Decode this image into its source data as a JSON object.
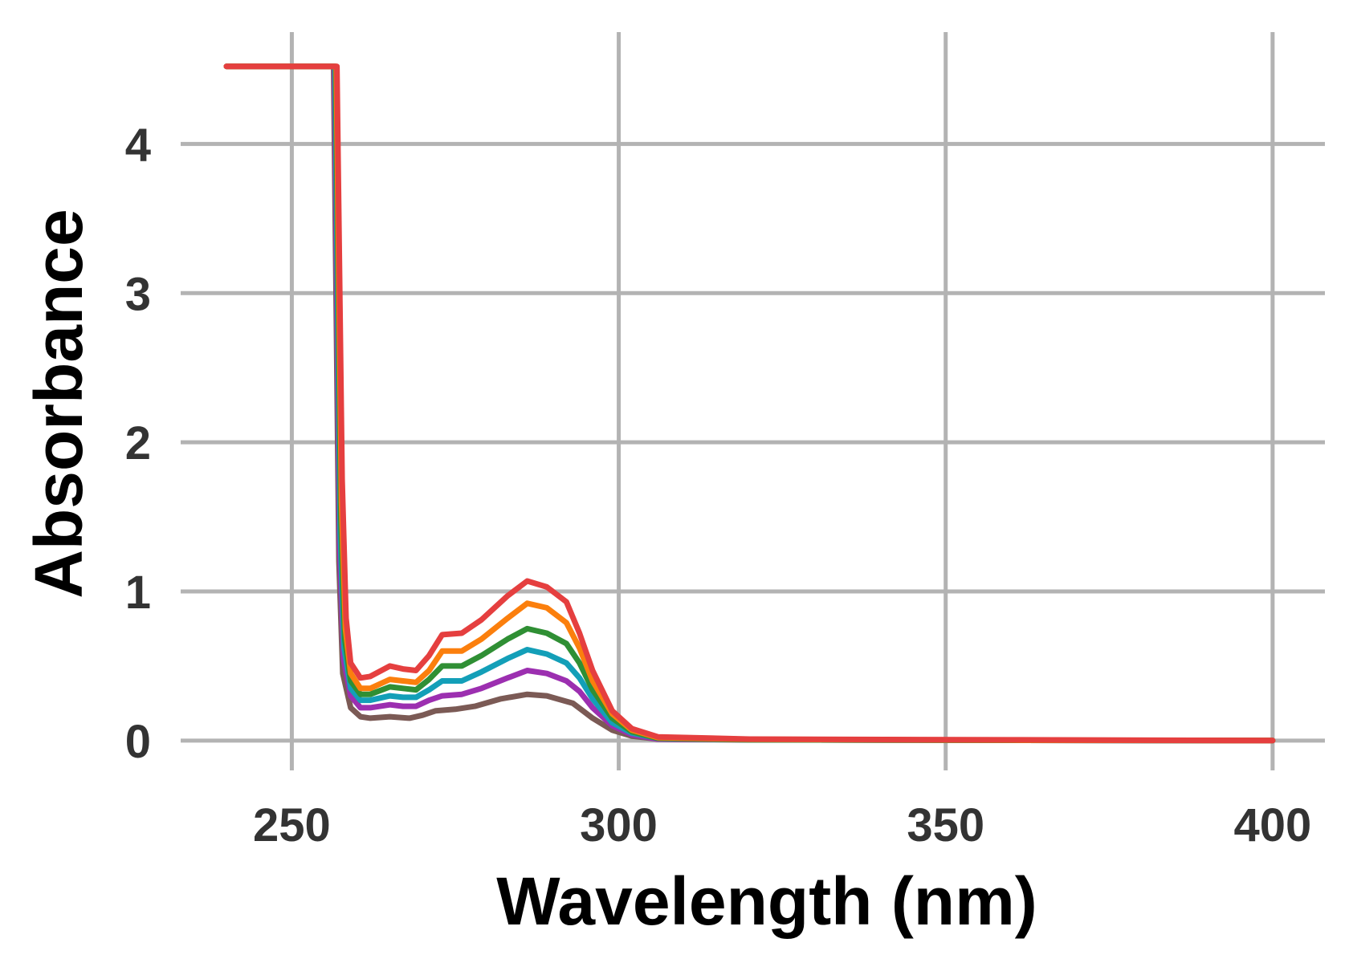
{
  "chart_data": {
    "type": "line",
    "title": "",
    "xlabel": "Wavelength (nm)",
    "ylabel": "Absorbance",
    "xlim": [
      233,
      408
    ],
    "ylim": [
      -0.2,
      4.75
    ],
    "xticks": [
      250,
      300,
      350,
      400
    ],
    "yticks": [
      0,
      1,
      2,
      3,
      4
    ],
    "grid": true,
    "legend": "none",
    "series": [
      {
        "color": "#7b5a55",
        "points": [
          [
            240,
            4.52
          ],
          [
            256.4,
            4.52
          ],
          [
            257.2,
            1.2
          ],
          [
            257.8,
            0.45
          ],
          [
            259,
            0.22
          ],
          [
            260.5,
            0.16
          ],
          [
            262,
            0.15
          ],
          [
            265,
            0.16
          ],
          [
            268,
            0.15
          ],
          [
            270,
            0.17
          ],
          [
            272,
            0.2
          ],
          [
            275,
            0.21
          ],
          [
            278,
            0.23
          ],
          [
            282,
            0.28
          ],
          [
            286,
            0.31
          ],
          [
            289,
            0.3
          ],
          [
            293,
            0.25
          ],
          [
            296,
            0.15
          ],
          [
            299,
            0.07
          ],
          [
            302,
            0.03
          ],
          [
            306,
            0.01
          ],
          [
            320,
            0.005
          ],
          [
            360,
            0.002
          ],
          [
            400,
            0.0
          ]
        ]
      },
      {
        "color": "#9c2fb0",
        "points": [
          [
            240,
            4.52
          ],
          [
            256.5,
            4.52
          ],
          [
            257.3,
            1.3
          ],
          [
            257.9,
            0.55
          ],
          [
            259,
            0.3
          ],
          [
            260.5,
            0.22
          ],
          [
            262,
            0.22
          ],
          [
            265,
            0.24
          ],
          [
            267,
            0.23
          ],
          [
            269,
            0.23
          ],
          [
            271,
            0.27
          ],
          [
            273,
            0.3
          ],
          [
            276,
            0.31
          ],
          [
            279,
            0.35
          ],
          [
            283,
            0.42
          ],
          [
            286,
            0.47
          ],
          [
            289,
            0.45
          ],
          [
            292,
            0.4
          ],
          [
            294,
            0.33
          ],
          [
            296,
            0.22
          ],
          [
            299,
            0.1
          ],
          [
            302,
            0.04
          ],
          [
            306,
            0.01
          ],
          [
            320,
            0.005
          ],
          [
            360,
            0.002
          ],
          [
            400,
            0.0
          ]
        ]
      },
      {
        "color": "#139fb8",
        "points": [
          [
            240,
            4.52
          ],
          [
            256.6,
            4.52
          ],
          [
            257.4,
            1.4
          ],
          [
            258,
            0.62
          ],
          [
            259,
            0.35
          ],
          [
            260.5,
            0.27
          ],
          [
            262,
            0.27
          ],
          [
            265,
            0.3
          ],
          [
            267,
            0.29
          ],
          [
            269,
            0.29
          ],
          [
            271,
            0.34
          ],
          [
            273,
            0.4
          ],
          [
            276,
            0.4
          ],
          [
            279,
            0.46
          ],
          [
            283,
            0.55
          ],
          [
            286,
            0.61
          ],
          [
            289,
            0.58
          ],
          [
            292,
            0.52
          ],
          [
            294,
            0.42
          ],
          [
            296,
            0.28
          ],
          [
            299,
            0.12
          ],
          [
            302,
            0.05
          ],
          [
            306,
            0.015
          ],
          [
            320,
            0.005
          ],
          [
            360,
            0.002
          ],
          [
            400,
            0.0
          ]
        ]
      },
      {
        "color": "#2f8f34",
        "points": [
          [
            240,
            4.52
          ],
          [
            256.7,
            4.52
          ],
          [
            257.5,
            1.5
          ],
          [
            258.1,
            0.68
          ],
          [
            259,
            0.4
          ],
          [
            260.5,
            0.31
          ],
          [
            262,
            0.31
          ],
          [
            265,
            0.36
          ],
          [
            267,
            0.35
          ],
          [
            269,
            0.34
          ],
          [
            271,
            0.41
          ],
          [
            273,
            0.5
          ],
          [
            276,
            0.5
          ],
          [
            279,
            0.57
          ],
          [
            283,
            0.68
          ],
          [
            286,
            0.75
          ],
          [
            289,
            0.72
          ],
          [
            292,
            0.65
          ],
          [
            294,
            0.52
          ],
          [
            296,
            0.34
          ],
          [
            299,
            0.15
          ],
          [
            302,
            0.06
          ],
          [
            306,
            0.015
          ],
          [
            320,
            0.005
          ],
          [
            360,
            0.002
          ],
          [
            400,
            0.0
          ]
        ]
      },
      {
        "color": "#fb7f0d",
        "points": [
          [
            240,
            4.52
          ],
          [
            256.8,
            4.52
          ],
          [
            257.6,
            1.6
          ],
          [
            258.2,
            0.75
          ],
          [
            259,
            0.45
          ],
          [
            260.5,
            0.35
          ],
          [
            262,
            0.35
          ],
          [
            265,
            0.41
          ],
          [
            267,
            0.4
          ],
          [
            269,
            0.39
          ],
          [
            271,
            0.47
          ],
          [
            273,
            0.6
          ],
          [
            276,
            0.6
          ],
          [
            279,
            0.68
          ],
          [
            283,
            0.82
          ],
          [
            286,
            0.92
          ],
          [
            289,
            0.89
          ],
          [
            292,
            0.79
          ],
          [
            294,
            0.62
          ],
          [
            296,
            0.4
          ],
          [
            299,
            0.18
          ],
          [
            302,
            0.07
          ],
          [
            306,
            0.02
          ],
          [
            320,
            0.008
          ],
          [
            360,
            0.003
          ],
          [
            400,
            0.0
          ]
        ]
      },
      {
        "color": "#e53f3f",
        "points": [
          [
            240,
            4.52
          ],
          [
            256.9,
            4.52
          ],
          [
            257.7,
            1.75
          ],
          [
            258.3,
            0.82
          ],
          [
            259,
            0.52
          ],
          [
            260.5,
            0.42
          ],
          [
            262,
            0.43
          ],
          [
            265,
            0.5
          ],
          [
            267,
            0.48
          ],
          [
            269,
            0.47
          ],
          [
            271,
            0.57
          ],
          [
            273,
            0.71
          ],
          [
            276,
            0.72
          ],
          [
            279,
            0.81
          ],
          [
            283,
            0.97
          ],
          [
            286,
            1.07
          ],
          [
            289,
            1.03
          ],
          [
            292,
            0.93
          ],
          [
            294,
            0.72
          ],
          [
            296,
            0.47
          ],
          [
            299,
            0.2
          ],
          [
            302,
            0.08
          ],
          [
            306,
            0.025
          ],
          [
            320,
            0.01
          ],
          [
            360,
            0.005
          ],
          [
            400,
            0.0
          ]
        ]
      }
    ]
  }
}
